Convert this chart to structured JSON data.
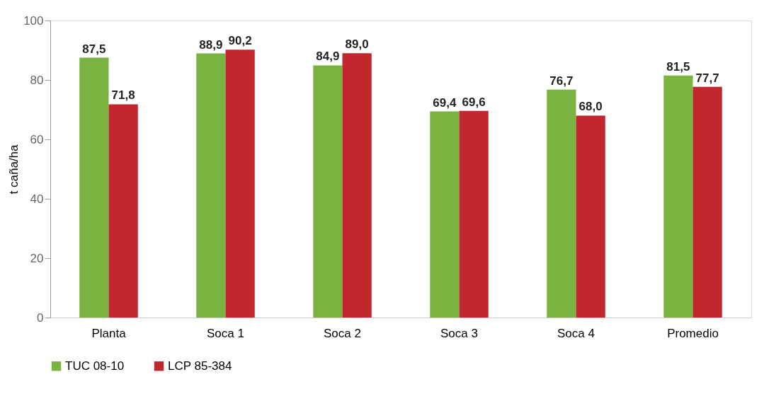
{
  "chart_data": {
    "type": "bar",
    "ylabel": "t caña/ha",
    "categories": [
      "Planta",
      "Soca 1",
      "Soca 2",
      "Soca 3",
      "Soca 4",
      "Promedio"
    ],
    "series": [
      {
        "name": "TUC 08-10",
        "color": "#7ab340",
        "values": [
          87.5,
          88.9,
          84.9,
          69.4,
          76.7,
          81.5
        ],
        "value_labels": [
          "87,5",
          "88,9",
          "84,9",
          "69,4",
          "76,7",
          "81,5"
        ]
      },
      {
        "name": "LCP 85-384",
        "color": "#c1272d",
        "values": [
          71.8,
          90.2,
          89.0,
          69.6,
          68.0,
          77.7
        ],
        "value_labels": [
          "71,8",
          "90,2",
          "89,0",
          "69,6",
          "68,0",
          "77,7"
        ]
      }
    ],
    "ylim": [
      0,
      100
    ],
    "yticks": [
      0,
      20,
      40,
      60,
      80,
      100
    ],
    "grid": false,
    "legend": "bottom"
  }
}
